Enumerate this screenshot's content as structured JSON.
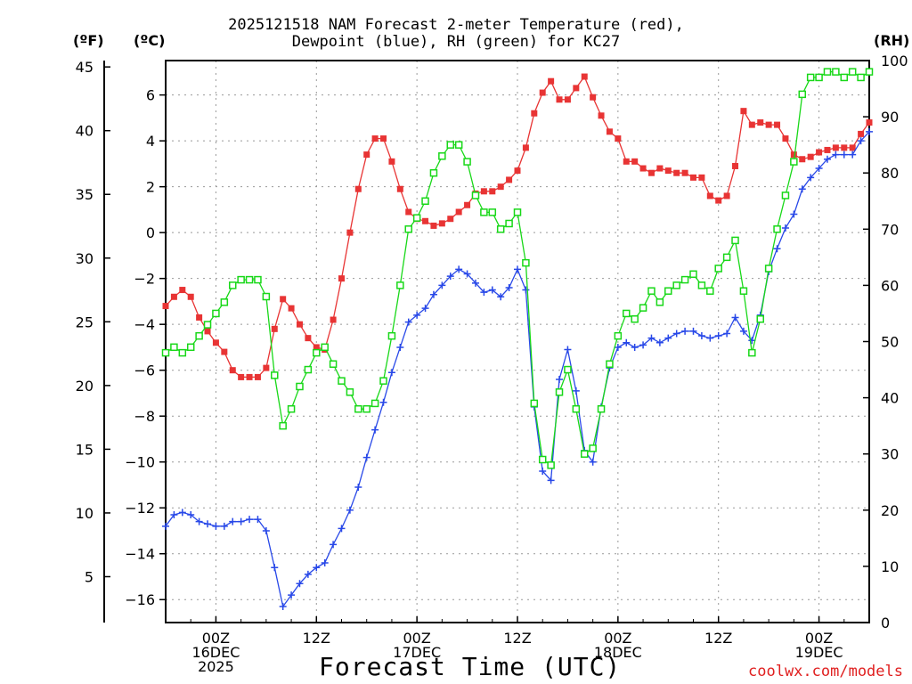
{
  "title_line1": "2025121518 NAM Forecast 2-meter Temperature (red),",
  "title_line2": "Dewpoint (blue), RH (green) for KC27",
  "unit_f": "(ºF)",
  "unit_c": "(ºC)",
  "unit_rh": "(RH)",
  "xlabel": "Forecast Time (UTC)",
  "credit": "coolwx.com/models",
  "colors": {
    "temperature": "#e83434",
    "dewpoint": "#2848e8",
    "rh": "#18d818",
    "grid": "#999999"
  },
  "chart_data": {
    "type": "line",
    "x_unit": "forecast hour from 2025-12-15 18Z",
    "xlim": [
      0,
      84
    ],
    "x_ticks": [
      {
        "hour": 6,
        "labels": [
          "00Z",
          "16DEC",
          "2025"
        ]
      },
      {
        "hour": 18,
        "labels": [
          "12Z"
        ]
      },
      {
        "hour": 30,
        "labels": [
          "00Z",
          "17DEC"
        ]
      },
      {
        "hour": 42,
        "labels": [
          "12Z"
        ]
      },
      {
        "hour": 54,
        "labels": [
          "00Z",
          "18DEC"
        ]
      },
      {
        "hour": 66,
        "labels": [
          "12Z"
        ]
      },
      {
        "hour": 78,
        "labels": [
          "00Z",
          "19DEC"
        ]
      }
    ],
    "ylim_c": [
      -17,
      7.5
    ],
    "y_ticks_c": [
      6,
      4,
      2,
      0,
      -2,
      -4,
      -6,
      -8,
      -10,
      -12,
      -14,
      -16
    ],
    "y_ticks_c_labels": [
      "6",
      "4",
      "2",
      "0",
      "−2",
      "−4",
      "−6",
      "−8",
      "−10",
      "−12",
      "−14",
      "−16"
    ],
    "y_ticks_f": [
      45,
      40,
      35,
      30,
      25,
      20,
      15,
      10,
      5
    ],
    "y_ticks_f_labels": [
      "45",
      "40",
      "35",
      "30",
      "25",
      "20",
      "15",
      "10",
      "5"
    ],
    "ylim_rh": [
      0,
      100
    ],
    "y_ticks_rh": [
      100,
      90,
      80,
      70,
      60,
      50,
      40,
      30,
      20,
      10,
      0
    ],
    "y_ticks_rh_labels": [
      "100",
      "90",
      "80",
      "70",
      "60",
      "50",
      "40",
      "30",
      "20",
      "10",
      "0"
    ],
    "grid": true,
    "series": [
      {
        "key": "temperature",
        "axis": "celsius",
        "marker": "square",
        "x": [
          0,
          1,
          2,
          3,
          4,
          5,
          6,
          7,
          8,
          9,
          10,
          11,
          12,
          13,
          14,
          15,
          16,
          17,
          18,
          19,
          20,
          21,
          22,
          23,
          24,
          25,
          26,
          27,
          28,
          29,
          30,
          31,
          32,
          33,
          34,
          35,
          36,
          37,
          38,
          39,
          40,
          41,
          42,
          43,
          44,
          45,
          46,
          47,
          48,
          49,
          50,
          51,
          52,
          53,
          54,
          55,
          56,
          57,
          58,
          59,
          60,
          61,
          62,
          63,
          64,
          65,
          66,
          67,
          68,
          69,
          70,
          71,
          72,
          73,
          74,
          75,
          76,
          77,
          78,
          79,
          80,
          81,
          82,
          83,
          84
        ],
        "values": [
          -3.2,
          -2.8,
          -2.5,
          -2.8,
          -3.7,
          -4.3,
          -4.8,
          -5.2,
          -6.0,
          -6.3,
          -6.3,
          -6.3,
          -5.9,
          -4.2,
          -2.9,
          -3.3,
          -4.0,
          -4.6,
          -5.0,
          -5.1,
          -3.8,
          -2.0,
          0.0,
          1.9,
          3.4,
          4.1,
          4.1,
          3.1,
          1.9,
          0.9,
          0.6,
          0.5,
          0.3,
          0.4,
          0.6,
          0.9,
          1.2,
          1.7,
          1.8,
          1.8,
          2.0,
          2.3,
          2.7,
          3.7,
          5.2,
          6.1,
          6.6,
          5.8,
          5.8,
          6.3,
          6.8,
          5.9,
          5.1,
          4.4,
          4.1,
          3.1,
          3.1,
          2.8,
          2.6,
          2.8,
          2.7,
          2.6,
          2.6,
          2.4,
          2.4,
          1.6,
          1.4,
          1.6,
          2.9,
          5.3,
          4.7,
          4.8,
          4.7,
          4.7,
          4.1,
          3.4,
          3.2,
          3.3,
          3.5,
          3.6,
          3.7,
          3.7,
          3.7,
          4.3,
          4.8
        ]
      },
      {
        "key": "dewpoint",
        "axis": "celsius",
        "marker": "plus",
        "x": [
          0,
          1,
          2,
          3,
          4,
          5,
          6,
          7,
          8,
          9,
          10,
          11,
          12,
          13,
          14,
          15,
          16,
          17,
          18,
          19,
          20,
          21,
          22,
          23,
          24,
          25,
          26,
          27,
          28,
          29,
          30,
          31,
          32,
          33,
          34,
          35,
          36,
          37,
          38,
          39,
          40,
          41,
          42,
          43,
          44,
          45,
          46,
          47,
          48,
          49,
          50,
          51,
          52,
          53,
          54,
          55,
          56,
          57,
          58,
          59,
          60,
          61,
          62,
          63,
          64,
          65,
          66,
          67,
          68,
          69,
          70,
          71,
          72,
          73,
          74,
          75,
          76,
          77,
          78,
          79,
          80,
          81,
          82,
          83,
          84
        ],
        "values": [
          -12.8,
          -12.3,
          -12.2,
          -12.3,
          -12.6,
          -12.7,
          -12.8,
          -12.8,
          -12.6,
          -12.6,
          -12.5,
          -12.5,
          -13.0,
          -14.6,
          -16.3,
          -15.8,
          -15.3,
          -14.9,
          -14.6,
          -14.4,
          -13.6,
          -12.9,
          -12.1,
          -11.1,
          -9.8,
          -8.6,
          -7.4,
          -6.1,
          -5.0,
          -3.9,
          -3.6,
          -3.3,
          -2.7,
          -2.3,
          -1.9,
          -1.6,
          -1.8,
          -2.2,
          -2.6,
          -2.5,
          -2.8,
          -2.4,
          -1.6,
          -2.5,
          -7.6,
          -10.4,
          -10.8,
          -6.4,
          -5.1,
          -6.9,
          -9.5,
          -10.0,
          -7.6,
          -5.9,
          -5.0,
          -4.8,
          -5.0,
          -4.9,
          -4.6,
          -4.8,
          -4.6,
          -4.4,
          -4.3,
          -4.3,
          -4.5,
          -4.6,
          -4.5,
          -4.4,
          -3.7,
          -4.3,
          -4.7,
          -3.6,
          -1.7,
          -0.7,
          0.2,
          0.8,
          1.9,
          2.4,
          2.8,
          3.2,
          3.4,
          3.4,
          3.4,
          4.0,
          4.4
        ]
      },
      {
        "key": "rh",
        "axis": "rh",
        "marker": "open-square",
        "x": [
          0,
          1,
          2,
          3,
          4,
          5,
          6,
          7,
          8,
          9,
          10,
          11,
          12,
          13,
          14,
          15,
          16,
          17,
          18,
          19,
          20,
          21,
          22,
          23,
          24,
          25,
          26,
          27,
          28,
          29,
          30,
          31,
          32,
          33,
          34,
          35,
          36,
          37,
          38,
          39,
          40,
          41,
          42,
          43,
          44,
          45,
          46,
          47,
          48,
          49,
          50,
          51,
          52,
          53,
          54,
          55,
          56,
          57,
          58,
          59,
          60,
          61,
          62,
          63,
          64,
          65,
          66,
          67,
          68,
          69,
          70,
          71,
          72,
          73,
          74,
          75,
          76,
          77,
          78,
          79,
          80,
          81,
          82,
          83,
          84
        ],
        "values": [
          48,
          49,
          48,
          49,
          51,
          53,
          55,
          57,
          60,
          61,
          61,
          61,
          58,
          44,
          35,
          38,
          42,
          45,
          48,
          49,
          46,
          43,
          41,
          38,
          38,
          39,
          43,
          51,
          60,
          70,
          72,
          75,
          80,
          83,
          85,
          85,
          82,
          76,
          73,
          73,
          70,
          71,
          73,
          64,
          39,
          29,
          28,
          41,
          45,
          38,
          30,
          31,
          38,
          46,
          51,
          55,
          54,
          56,
          59,
          57,
          59,
          60,
          61,
          62,
          60,
          59,
          63,
          65,
          68,
          59,
          48,
          54,
          63,
          70,
          76,
          82,
          94,
          97,
          97,
          98,
          98,
          97,
          98,
          97,
          98
        ]
      }
    ]
  }
}
